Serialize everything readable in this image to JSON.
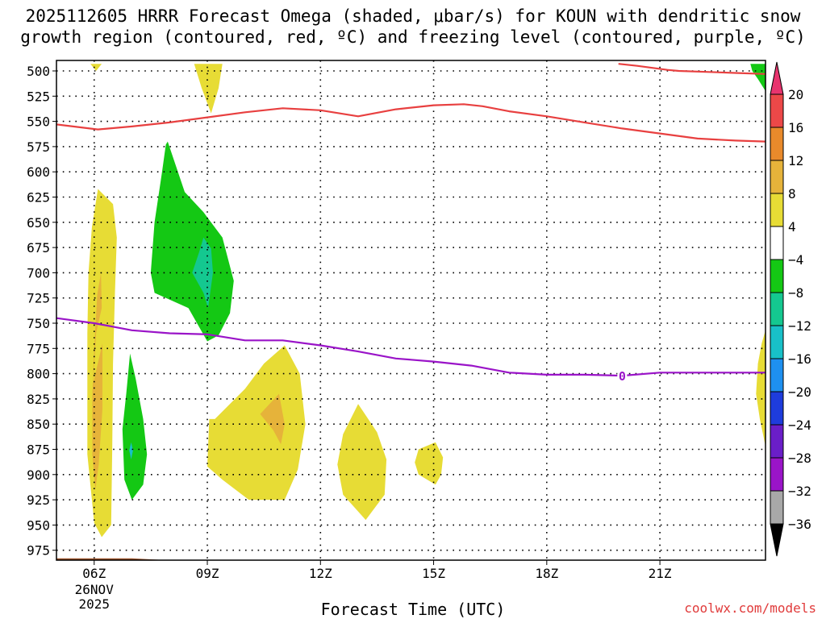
{
  "chart_data": {
    "type": "contour",
    "title_lines": [
      "2025112605 HRRR Forecast Omega (shaded, μbar/s) for KOUN with dendritic snow",
      "growth region (contoured, red, ºC) and freezing level (contoured, purple, ºC)"
    ],
    "xlabel": "Forecast Time (UTC)",
    "ylabel": "",
    "x_unit": "hours after 05Z",
    "xlim": [
      0,
      18.8
    ],
    "ylim": [
      990,
      490
    ],
    "y_ticks": [
      "500",
      "525",
      "550",
      "575",
      "600",
      "625",
      "650",
      "675",
      "700",
      "725",
      "750",
      "775",
      "800",
      "825",
      "850",
      "875",
      "900",
      "925",
      "950",
      "975"
    ],
    "x_ticks": [
      {
        "value": 1,
        "label": "06Z",
        "sub1": "26NOV",
        "sub2": "2025"
      },
      {
        "value": 4,
        "label": "09Z"
      },
      {
        "value": 7,
        "label": "12Z"
      },
      {
        "value": 10,
        "label": "15Z"
      },
      {
        "value": 13,
        "label": "18Z"
      },
      {
        "value": 16,
        "label": "21Z"
      }
    ],
    "colorbar": {
      "labels": [
        "20",
        "16",
        "12",
        "8",
        "4",
        "−4",
        "−8",
        "−12",
        "−16",
        "−20",
        "−24",
        "−28",
        "−32",
        "−36"
      ],
      "colors": [
        "#e8346e",
        "#ec4848",
        "#e98a2b",
        "#e6b33a",
        "#e7dc35",
        "#ffffff",
        "#14c814",
        "#14c890",
        "#18c0c8",
        "#1e90f0",
        "#1e3cdc",
        "#6a1ec8",
        "#9a14c8",
        "#a8a8a8",
        "#000000"
      ]
    },
    "shading": [
      {
        "name": "yellow-0",
        "color": "#e7dc35",
        "points": [
          [
            0.94,
            655
          ],
          [
            1.1,
            617
          ],
          [
            1.5,
            632
          ],
          [
            1.6,
            665
          ],
          [
            1.55,
            720
          ],
          [
            1.5,
            790
          ],
          [
            1.48,
            870
          ],
          [
            1.45,
            950
          ],
          [
            1.2,
            962
          ],
          [
            1.0,
            948
          ],
          [
            0.82,
            880
          ],
          [
            0.82,
            760
          ],
          [
            0.85,
            700
          ]
        ]
      },
      {
        "name": "orange-0",
        "color": "#e6b33a",
        "points": [
          [
            0.97,
            810
          ],
          [
            1.05,
            760
          ],
          [
            1.2,
            735
          ],
          [
            1.18,
            700
          ],
          [
            1.08,
            722
          ],
          [
            1.0,
            775
          ],
          [
            0.95,
            822
          ],
          [
            0.95,
            880
          ],
          [
            1.03,
            915
          ],
          [
            1.12,
            890
          ],
          [
            1.22,
            835
          ],
          [
            1.22,
            770
          ]
        ]
      },
      {
        "name": "yellow-1",
        "color": "#e7dc35",
        "points": [
          [
            0.9,
            493
          ],
          [
            1.2,
            493
          ],
          [
            1.05,
            500
          ]
        ]
      },
      {
        "name": "yellow-2",
        "color": "#e7dc35",
        "points": [
          [
            3.65,
            493
          ],
          [
            4.4,
            493
          ],
          [
            4.3,
            517
          ],
          [
            4.1,
            542
          ],
          [
            3.85,
            517
          ]
        ]
      },
      {
        "name": "green-0",
        "color": "#14c814",
        "points": [
          [
            2.95,
            570
          ],
          [
            3.4,
            620
          ],
          [
            3.9,
            640
          ],
          [
            4.4,
            665
          ],
          [
            4.7,
            708
          ],
          [
            4.6,
            740
          ],
          [
            4.3,
            762
          ],
          [
            4.0,
            768
          ],
          [
            3.5,
            735
          ],
          [
            2.6,
            720
          ],
          [
            2.5,
            700
          ],
          [
            2.6,
            650
          ],
          [
            2.8,
            600
          ],
          [
            2.9,
            573
          ]
        ]
      },
      {
        "name": "teal-0",
        "color": "#14c890",
        "points": [
          [
            3.9,
            665
          ],
          [
            4.1,
            676
          ],
          [
            4.15,
            700
          ],
          [
            4.02,
            735
          ],
          [
            3.9,
            720
          ],
          [
            3.6,
            700
          ],
          [
            3.78,
            680
          ]
        ]
      },
      {
        "name": "green-1",
        "color": "#14c814",
        "points": [
          [
            1.95,
            780
          ],
          [
            2.1,
            805
          ],
          [
            2.3,
            845
          ],
          [
            2.4,
            880
          ],
          [
            2.3,
            910
          ],
          [
            2.0,
            925
          ],
          [
            1.8,
            905
          ],
          [
            1.75,
            855
          ],
          [
            1.85,
            820
          ]
        ]
      },
      {
        "name": "teal-1",
        "color": "#18c0c8",
        "points": [
          [
            1.98,
            868
          ],
          [
            2.03,
            876
          ],
          [
            1.98,
            885
          ],
          [
            1.93,
            876
          ]
        ]
      },
      {
        "name": "yellow-3",
        "color": "#e7dc35",
        "points": [
          [
            4.2,
            845
          ],
          [
            5.0,
            815
          ],
          [
            5.5,
            790
          ],
          [
            6.05,
            772
          ],
          [
            6.45,
            800
          ],
          [
            6.6,
            850
          ],
          [
            6.4,
            895
          ],
          [
            6.05,
            925
          ],
          [
            5.1,
            925
          ],
          [
            4.4,
            905
          ],
          [
            4.0,
            892
          ],
          [
            4.05,
            845
          ]
        ]
      },
      {
        "name": "orange-1",
        "color": "#e6b33a",
        "points": [
          [
            5.4,
            840
          ],
          [
            5.9,
            820
          ],
          [
            6.05,
            850
          ],
          [
            5.95,
            870
          ],
          [
            5.75,
            856
          ]
        ]
      },
      {
        "name": "yellow-4",
        "color": "#e7dc35",
        "points": [
          [
            8.0,
            830
          ],
          [
            8.5,
            858
          ],
          [
            8.75,
            885
          ],
          [
            8.7,
            920
          ],
          [
            8.2,
            945
          ],
          [
            7.6,
            920
          ],
          [
            7.45,
            890
          ],
          [
            7.6,
            860
          ]
        ]
      },
      {
        "name": "yellow-5",
        "color": "#e7dc35",
        "points": [
          [
            9.6,
            875
          ],
          [
            10.05,
            868
          ],
          [
            10.25,
            883
          ],
          [
            10.2,
            900
          ],
          [
            10.05,
            910
          ],
          [
            9.6,
            900
          ],
          [
            9.5,
            888
          ]
        ]
      },
      {
        "name": "yellow-6",
        "color": "#e7dc35",
        "points": [
          [
            18.8,
            757
          ],
          [
            18.8,
            872
          ],
          [
            18.65,
            845
          ],
          [
            18.55,
            820
          ],
          [
            18.6,
            790
          ],
          [
            18.7,
            770
          ]
        ]
      },
      {
        "name": "green-2",
        "color": "#14c814",
        "points": [
          [
            18.4,
            493
          ],
          [
            18.8,
            493
          ],
          [
            18.8,
            520
          ],
          [
            18.6,
            508
          ],
          [
            18.45,
            500
          ]
        ]
      }
    ],
    "red_contours": [
      {
        "name": "dgz-top",
        "points": [
          [
            14.9,
            493
          ],
          [
            15.4,
            495
          ],
          [
            15.8,
            497
          ],
          [
            16.2,
            499
          ],
          [
            16.5,
            500
          ],
          [
            17.3,
            501
          ],
          [
            18.0,
            502
          ],
          [
            18.8,
            503
          ]
        ]
      },
      {
        "name": "dgz-bottom",
        "points": [
          [
            0,
            553
          ],
          [
            1.1,
            558
          ],
          [
            2.0,
            555
          ],
          [
            3.0,
            551
          ],
          [
            4.0,
            546
          ],
          [
            5.0,
            541
          ],
          [
            6.0,
            537
          ],
          [
            7.0,
            539
          ],
          [
            8.0,
            545
          ],
          [
            9.0,
            538
          ],
          [
            10.0,
            534
          ],
          [
            10.8,
            533
          ],
          [
            11.3,
            535
          ],
          [
            12.0,
            540
          ],
          [
            13.0,
            545
          ],
          [
            14.0,
            551
          ],
          [
            15.0,
            557
          ],
          [
            16.0,
            562
          ],
          [
            17.0,
            567
          ],
          [
            18.0,
            569
          ],
          [
            18.8,
            570
          ]
        ]
      }
    ],
    "freezing_level": {
      "label": "0",
      "label_at": [
        15.0,
        802
      ],
      "points": [
        [
          0,
          745
        ],
        [
          1.0,
          750
        ],
        [
          2.0,
          757
        ],
        [
          3.0,
          760
        ],
        [
          4.0,
          761
        ],
        [
          5.0,
          767
        ],
        [
          6.0,
          767
        ],
        [
          7.0,
          772
        ],
        [
          8.0,
          778
        ],
        [
          9.0,
          785
        ],
        [
          10.0,
          788
        ],
        [
          11.0,
          792
        ],
        [
          12.0,
          799
        ],
        [
          13.0,
          801
        ],
        [
          14.0,
          801
        ],
        [
          15.0,
          802
        ],
        [
          16.0,
          799
        ],
        [
          17.0,
          799
        ],
        [
          18.0,
          799
        ],
        [
          18.8,
          799
        ]
      ]
    },
    "terrain": {
      "top_pressure": 983,
      "color": "#9b5128",
      "points": [
        [
          0,
          983
        ],
        [
          2,
          983
        ],
        [
          3,
          985
        ],
        [
          18.8,
          985
        ]
      ]
    }
  },
  "footer": {
    "xlabel": "Forecast Time (UTC)",
    "watermark": "coolwx.com/models"
  }
}
